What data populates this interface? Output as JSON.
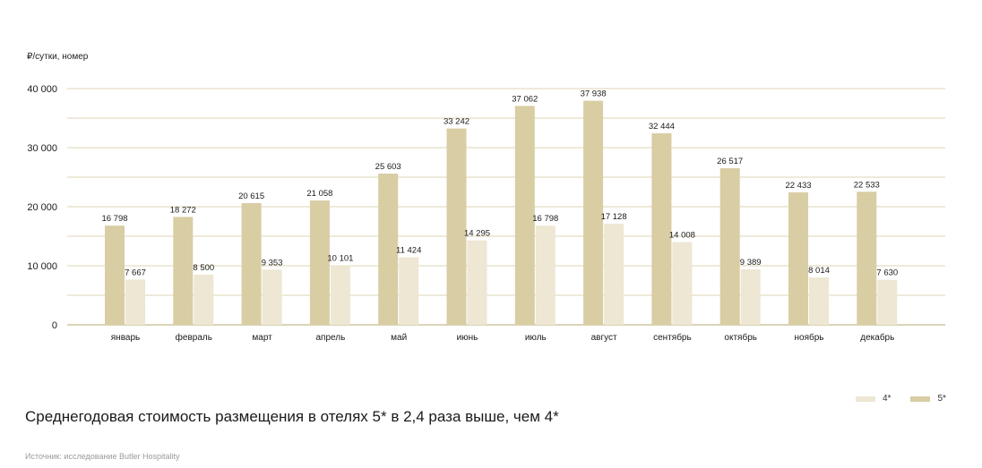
{
  "chart_data": {
    "type": "bar",
    "ylabel": "₽/сутки, номер",
    "ylim": [
      0,
      40000
    ],
    "yticks": [
      0,
      10000,
      20000,
      30000,
      40000
    ],
    "ytick_labels": [
      "0",
      "10 000",
      "20 000",
      "30 000",
      "40 000"
    ],
    "grid": true,
    "legend_position": "bottom-right",
    "categories": [
      "январь",
      "февраль",
      "март",
      "апрель",
      "май",
      "июнь",
      "июль",
      "август",
      "сентябрь",
      "октябрь",
      "ноябрь",
      "декабрь"
    ],
    "series": [
      {
        "name": "5*",
        "color": "#d9cda4",
        "values": [
          16798,
          18272,
          20615,
          21058,
          25603,
          33242,
          37062,
          37938,
          32444,
          26517,
          22433,
          22533
        ],
        "labels": [
          "16 798",
          "18 272",
          "20 615",
          "21 058",
          "25 603",
          "33 242",
          "37 062",
          "37 938",
          "32 444",
          "26 517",
          "22 433",
          "22 533"
        ]
      },
      {
        "name": "4*",
        "color": "#ede7d3",
        "values": [
          7667,
          8500,
          9353,
          10101,
          11424,
          14295,
          16798,
          17128,
          14008,
          9389,
          8014,
          7630
        ],
        "labels": [
          "7 667",
          "8 500",
          "9 353",
          "10 101",
          "11 424",
          "14 295",
          "16 798",
          "17 128",
          "14 008",
          "9 389",
          "8 014",
          "7 630"
        ]
      }
    ],
    "gridline_color": "#dcd4b4",
    "axis_color": "#cfc69f"
  },
  "headline": "Среднегодовая стоимость размещения в отелях 5* в 2,4 раза выше, чем 4*",
  "source": "Источник: исследование Butler Hospitality"
}
